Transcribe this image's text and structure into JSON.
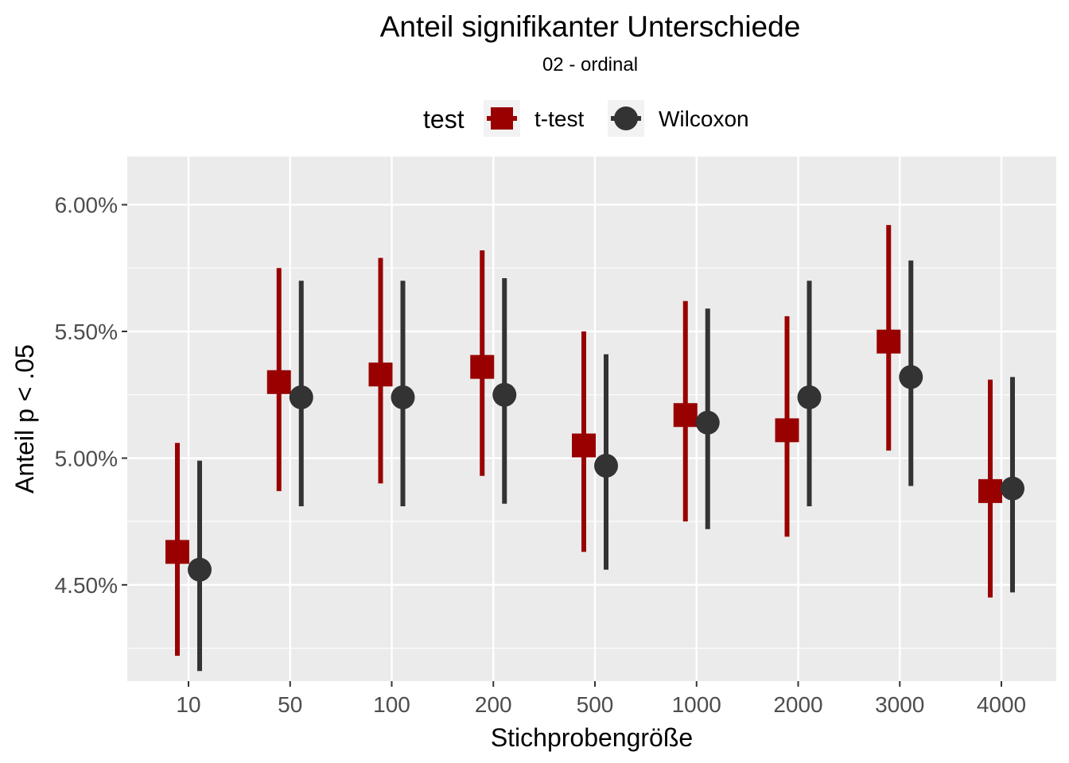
{
  "chart_data": {
    "type": "scatter",
    "title": "Anteil signifikanter Unterschiede",
    "subtitle": "02 - ordinal",
    "xlabel": "Stichprobengröße",
    "ylabel": "Anteil p < .05",
    "categories": [
      "10",
      "50",
      "100",
      "200",
      "500",
      "1000",
      "2000",
      "3000",
      "4000"
    ],
    "ylim": [
      0.0412,
      0.0619
    ],
    "yticks": [
      0.045,
      0.05,
      0.055,
      0.06
    ],
    "ytick_labels": [
      "4.50%",
      "5.00%",
      "5.50%",
      "6.00%"
    ],
    "grid": true,
    "legend": {
      "title": "test",
      "position": "top",
      "entries": [
        "t-test",
        "Wilcoxon"
      ]
    },
    "series": [
      {
        "name": "t-test",
        "color": "#990000",
        "shape": "square",
        "values": [
          0.0463,
          0.053,
          0.0533,
          0.0536,
          0.0505,
          0.0517,
          0.0511,
          0.0546,
          0.0487
        ],
        "lower": [
          0.0422,
          0.0487,
          0.049,
          0.0493,
          0.0463,
          0.0475,
          0.0469,
          0.0503,
          0.0445
        ],
        "upper": [
          0.0506,
          0.0575,
          0.0579,
          0.0582,
          0.055,
          0.0562,
          0.0556,
          0.0592,
          0.0531
        ]
      },
      {
        "name": "Wilcoxon",
        "color": "#333333",
        "shape": "circle",
        "values": [
          0.0456,
          0.0524,
          0.0524,
          0.0525,
          0.0497,
          0.0514,
          0.0524,
          0.0532,
          0.0488
        ],
        "lower": [
          0.0416,
          0.0481,
          0.0481,
          0.0482,
          0.0456,
          0.0472,
          0.0481,
          0.0489,
          0.0447
        ],
        "upper": [
          0.0499,
          0.057,
          0.057,
          0.0571,
          0.0541,
          0.0559,
          0.057,
          0.0578,
          0.0532
        ]
      }
    ]
  }
}
